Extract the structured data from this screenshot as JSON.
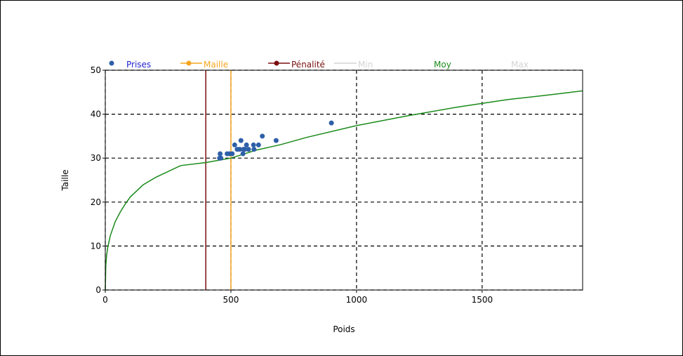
{
  "chart_data": {
    "type": "scatter",
    "xlabel": "Poids",
    "ylabel": "Taille",
    "xlim": [
      0,
      1900
    ],
    "ylim": [
      0,
      50
    ],
    "x_ticks": [
      0,
      500,
      1000,
      1500
    ],
    "y_ticks": [
      0,
      10,
      20,
      30,
      40,
      50
    ],
    "grid": true,
    "legend_position": "top",
    "legend": [
      {
        "key": "prises",
        "label": "Prises",
        "color": "#2e5fa8",
        "text_color": "#1f1fd0",
        "marker": "dot"
      },
      {
        "key": "maille",
        "label": "Maille",
        "color": "#f5a51f",
        "text_color": "#f5a51f",
        "marker": "line-dot"
      },
      {
        "key": "penalite",
        "label": "Pénalité",
        "color": "#7a0f0f",
        "text_color": "#7a0f0f",
        "marker": "line-dot"
      },
      {
        "key": "min",
        "label": "Min",
        "color": "#d3d3d3",
        "text_color": "#d3d3d3",
        "marker": "line"
      },
      {
        "key": "moy",
        "label": "Moy",
        "color": "#1a8a1a",
        "text_color": "#1a8a1a",
        "marker": "none"
      },
      {
        "key": "max",
        "label": "Max",
        "color": "#d3d3d3",
        "text_color": "#d3d3d3",
        "marker": "none"
      }
    ],
    "series": [
      {
        "name": "Prises",
        "type": "scatter",
        "color": "#2e5fa8",
        "points": [
          [
            455,
            30
          ],
          [
            457,
            31
          ],
          [
            460,
            30
          ],
          [
            485,
            31
          ],
          [
            495,
            31
          ],
          [
            505,
            31
          ],
          [
            515,
            33
          ],
          [
            525,
            32
          ],
          [
            535,
            32
          ],
          [
            540,
            34
          ],
          [
            548,
            31
          ],
          [
            550,
            32
          ],
          [
            555,
            32
          ],
          [
            562,
            33
          ],
          [
            570,
            32
          ],
          [
            590,
            33
          ],
          [
            592,
            32
          ],
          [
            610,
            33
          ],
          [
            625,
            35
          ],
          [
            680,
            34
          ],
          [
            900,
            38
          ]
        ]
      },
      {
        "name": "Maille",
        "type": "vline",
        "color": "#f5a51f",
        "x": 500
      },
      {
        "name": "Pénalité",
        "type": "vline",
        "color": "#7a0f0f",
        "x": 400
      },
      {
        "name": "Moy",
        "type": "curve",
        "color": "#1a8a1a",
        "points": [
          [
            0,
            0
          ],
          [
            2,
            5.5
          ],
          [
            5,
            7.8
          ],
          [
            10,
            9.8
          ],
          [
            20,
            12.4
          ],
          [
            40,
            15.6
          ],
          [
            60,
            17.8
          ],
          [
            80,
            19.6
          ],
          [
            100,
            21.2
          ],
          [
            150,
            23.9
          ],
          [
            200,
            25.6
          ],
          [
            300,
            28.3
          ],
          [
            400,
            29.0
          ],
          [
            500,
            30.0
          ],
          [
            600,
            31.8
          ],
          [
            700,
            33.1
          ],
          [
            800,
            34.7
          ],
          [
            1000,
            37.4
          ],
          [
            1200,
            39.6
          ],
          [
            1400,
            41.6
          ],
          [
            1600,
            43.3
          ],
          [
            1800,
            44.6
          ],
          [
            1900,
            45.3
          ]
        ]
      }
    ]
  }
}
